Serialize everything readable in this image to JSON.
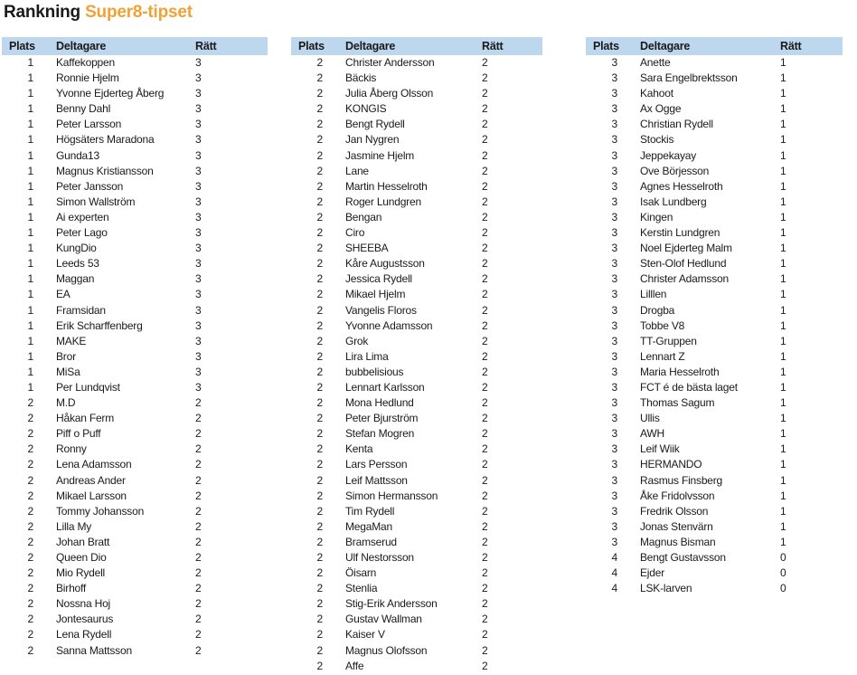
{
  "title": {
    "main": "Rankning",
    "accent": "Super8-tipset"
  },
  "colors": {
    "accent_orange": "#EFA236",
    "header_blue": "#BDD7EE",
    "text": "#1a1a1a"
  },
  "columns": {
    "plats": "Plats",
    "deltagare": "Deltagare",
    "ratt": "Rätt"
  },
  "tables": [
    {
      "rows": [
        [
          1,
          "Kaffekoppen",
          3
        ],
        [
          1,
          "Ronnie Hjelm",
          3
        ],
        [
          1,
          "Yvonne Ejderteg Åberg",
          3
        ],
        [
          1,
          "Benny Dahl",
          3
        ],
        [
          1,
          "Peter Larsson",
          3
        ],
        [
          1,
          "Högsäters Maradona",
          3
        ],
        [
          1,
          "Gunda13",
          3
        ],
        [
          1,
          "Magnus Kristiansson",
          3
        ],
        [
          1,
          "Peter Jansson",
          3
        ],
        [
          1,
          "Simon Wallström",
          3
        ],
        [
          1,
          "Ai experten",
          3
        ],
        [
          1,
          "Peter Lago",
          3
        ],
        [
          1,
          "KungDio",
          3
        ],
        [
          1,
          "Leeds 53",
          3
        ],
        [
          1,
          "Maggan",
          3
        ],
        [
          1,
          "EA",
          3
        ],
        [
          1,
          "Framsidan",
          3
        ],
        [
          1,
          "Erik Scharffenberg",
          3
        ],
        [
          1,
          "MAKE",
          3
        ],
        [
          1,
          "Bror",
          3
        ],
        [
          1,
          "MiSa",
          3
        ],
        [
          1,
          "Per Lundqvist",
          3
        ],
        [
          2,
          "M.D",
          2
        ],
        [
          2,
          "Håkan Ferm",
          2
        ],
        [
          2,
          "Piff o Puff",
          2
        ],
        [
          2,
          "Ronny",
          2
        ],
        [
          2,
          "Lena Adamsson",
          2
        ],
        [
          2,
          "Andreas Ander",
          2
        ],
        [
          2,
          "Mikael Larsson",
          2
        ],
        [
          2,
          "Tommy Johansson",
          2
        ],
        [
          2,
          "Lilla My",
          2
        ],
        [
          2,
          "Johan Bratt",
          2
        ],
        [
          2,
          "Queen Dio",
          2
        ],
        [
          2,
          "Mio Rydell",
          2
        ],
        [
          2,
          "Birhoff",
          2
        ],
        [
          2,
          "Nossna Hoj",
          2
        ],
        [
          2,
          "Jontesaurus",
          2
        ],
        [
          2,
          "Lena Rydell",
          2
        ],
        [
          2,
          "Sanna Mattsson",
          2
        ]
      ]
    },
    {
      "rows": [
        [
          2,
          "Christer Andersson",
          2
        ],
        [
          2,
          "Bäckis",
          2
        ],
        [
          2,
          "Julia Åberg Olsson",
          2
        ],
        [
          2,
          "KONGIS",
          2
        ],
        [
          2,
          "Bengt Rydell",
          2
        ],
        [
          2,
          "Jan Nygren",
          2
        ],
        [
          2,
          "Jasmine Hjelm",
          2
        ],
        [
          2,
          "Lane",
          2
        ],
        [
          2,
          "Martin Hesselroth",
          2
        ],
        [
          2,
          "Roger Lundgren",
          2
        ],
        [
          2,
          "Bengan",
          2
        ],
        [
          2,
          "Ciro",
          2
        ],
        [
          2,
          "SHEEBA",
          2
        ],
        [
          2,
          "Kåre Augustsson",
          2
        ],
        [
          2,
          "Jessica Rydell",
          2
        ],
        [
          2,
          "Mikael Hjelm",
          2
        ],
        [
          2,
          "Vangelis Floros",
          2
        ],
        [
          2,
          "Yvonne Adamsson",
          2
        ],
        [
          2,
          "Grok",
          2
        ],
        [
          2,
          "Lira Lima",
          2
        ],
        [
          2,
          "bubbelisious",
          2
        ],
        [
          2,
          "Lennart Karlsson",
          2
        ],
        [
          2,
          "Mona Hedlund",
          2
        ],
        [
          2,
          "Peter Bjurström",
          2
        ],
        [
          2,
          "Stefan Mogren",
          2
        ],
        [
          2,
          "Kenta",
          2
        ],
        [
          2,
          "Lars Persson",
          2
        ],
        [
          2,
          "Leif Mattsson",
          2
        ],
        [
          2,
          "Simon Hermansson",
          2
        ],
        [
          2,
          "Tim Rydell",
          2
        ],
        [
          2,
          "MegaMan",
          2
        ],
        [
          2,
          "Bramserud",
          2
        ],
        [
          2,
          "Ulf Nestorsson",
          2
        ],
        [
          2,
          "Öisarn",
          2
        ],
        [
          2,
          "Stenlia",
          2
        ],
        [
          2,
          "Stig-Erik Andersson",
          2
        ],
        [
          2,
          "Gustav Wallman",
          2
        ],
        [
          2,
          "Kaiser V",
          2
        ],
        [
          2,
          "Magnus Olofsson",
          2
        ],
        [
          2,
          "Affe",
          2
        ]
      ]
    },
    {
      "rows": [
        [
          3,
          "Anette",
          1
        ],
        [
          3,
          "Sara Engelbrektsson",
          1
        ],
        [
          3,
          "Kahoot",
          1
        ],
        [
          3,
          "Ax Ogge",
          1
        ],
        [
          3,
          "Christian Rydell",
          1
        ],
        [
          3,
          "Stockis",
          1
        ],
        [
          3,
          "Jeppekayay",
          1
        ],
        [
          3,
          "Ove Börjesson",
          1
        ],
        [
          3,
          "Agnes Hesselroth",
          1
        ],
        [
          3,
          "Isak Lundberg",
          1
        ],
        [
          3,
          "Kingen",
          1
        ],
        [
          3,
          "Kerstin Lundgren",
          1
        ],
        [
          3,
          "Noel Ejderteg Malm",
          1
        ],
        [
          3,
          "Sten-Olof Hedlund",
          1
        ],
        [
          3,
          "Christer Adamsson",
          1
        ],
        [
          3,
          "Lilllen",
          1
        ],
        [
          3,
          "Drogba",
          1
        ],
        [
          3,
          "Tobbe V8",
          1
        ],
        [
          3,
          "TT-Gruppen",
          1
        ],
        [
          3,
          "Lennart Z",
          1
        ],
        [
          3,
          "Maria Hesselroth",
          1
        ],
        [
          3,
          "FCT é de bästa laget",
          1
        ],
        [
          3,
          "Thomas Sagum",
          1
        ],
        [
          3,
          "Ullis",
          1
        ],
        [
          3,
          "AWH",
          1
        ],
        [
          3,
          "Leif Wiik",
          1
        ],
        [
          3,
          "HERMANDO",
          1
        ],
        [
          3,
          "Rasmus Finsberg",
          1
        ],
        [
          3,
          "Åke Fridolvsson",
          1
        ],
        [
          3,
          "Fredrik Olsson",
          1
        ],
        [
          3,
          "Jonas Stenvärn",
          1
        ],
        [
          3,
          "Magnus Bisman",
          1
        ],
        [
          4,
          "Bengt Gustavsson",
          0
        ],
        [
          4,
          "Ejder",
          0
        ],
        [
          4,
          "LSK-larven",
          0
        ]
      ]
    }
  ]
}
